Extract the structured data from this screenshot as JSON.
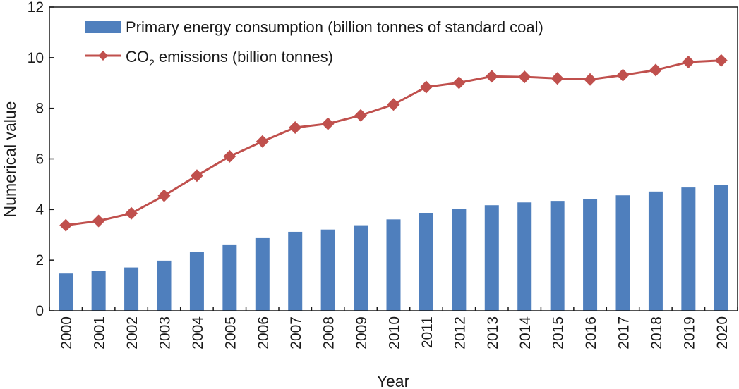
{
  "chart_data": {
    "type": "bar+line",
    "title": "",
    "xlabel": "Year",
    "ylabel": "Numerical value",
    "ylim": [
      0,
      12
    ],
    "yticks": [
      0,
      2,
      4,
      6,
      8,
      10,
      12
    ],
    "grid": false,
    "legend_position": "top-left",
    "categories": [
      "2000",
      "2001",
      "2002",
      "2003",
      "2004",
      "2005",
      "2006",
      "2007",
      "2008",
      "2009",
      "2010",
      "2011",
      "2012",
      "2013",
      "2014",
      "2015",
      "2016",
      "2017",
      "2018",
      "2019",
      "2020"
    ],
    "series": [
      {
        "name": "Primary energy consumption (billion tonnes of standard coal)",
        "type": "bar",
        "color": "#4f7fbd",
        "values": [
          1.47,
          1.56,
          1.71,
          1.98,
          2.32,
          2.62,
          2.87,
          3.12,
          3.21,
          3.38,
          3.61,
          3.87,
          4.02,
          4.17,
          4.28,
          4.34,
          4.41,
          4.56,
          4.71,
          4.87,
          4.98
        ]
      },
      {
        "name_main": "CO",
        "name_sub": "2",
        "name_rest": " emissions (billion tonnes)",
        "type": "line",
        "color": "#c0504d",
        "marker": "diamond",
        "values": [
          3.38,
          3.55,
          3.85,
          4.55,
          5.34,
          6.1,
          6.69,
          7.24,
          7.39,
          7.72,
          8.15,
          8.84,
          9.01,
          9.26,
          9.24,
          9.18,
          9.14,
          9.31,
          9.51,
          9.83,
          9.89
        ]
      }
    ]
  }
}
